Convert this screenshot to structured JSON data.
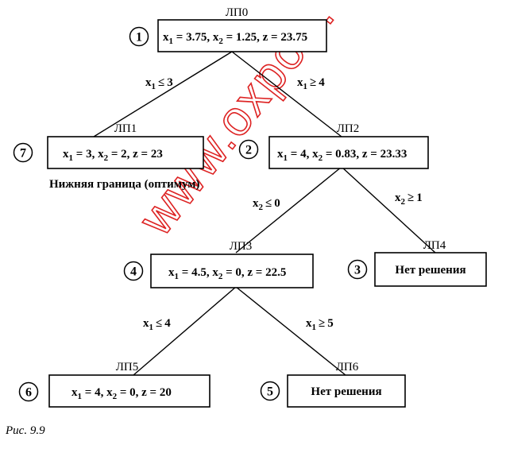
{
  "figure_caption": "Рис. 9.9",
  "watermark": "www.oxpo...",
  "nodes": [
    {
      "id": "n0",
      "title": "ЛП0",
      "order": "1",
      "box_parts": [
        [
          "x",
          ""
        ],
        [
          "1",
          ""
        ],
        [
          " = 3.75, ",
          ""
        ],
        [
          "x",
          ""
        ],
        [
          "2",
          ""
        ],
        [
          " = 1.25, z = 23.75",
          ""
        ]
      ]
    },
    {
      "id": "n1",
      "title": "ЛП1",
      "order": "7",
      "note": "Нижняя граница (оптимум)"
    },
    {
      "id": "n2",
      "title": "ЛП2",
      "order": "2"
    },
    {
      "id": "n3",
      "title": "ЛП3",
      "order": "4"
    },
    {
      "id": "n4",
      "title": "ЛП4",
      "order": "3",
      "text": "Нет решения"
    },
    {
      "id": "n5",
      "title": "ЛП5",
      "order": "6"
    },
    {
      "id": "n6",
      "title": "ЛП6",
      "order": "5",
      "text": "Нет решения"
    }
  ],
  "solutions": {
    "n0": {
      "x1": "3.75",
      "x2": "1.25",
      "z": "23.75"
    },
    "n1": {
      "x1": "3",
      "x2": "2",
      "z": "23"
    },
    "n2": {
      "x1": "4",
      "x2": "0.83",
      "z": "23.33"
    },
    "n3": {
      "x1": "4.5",
      "x2": "0",
      "z": "22.5"
    },
    "n5": {
      "x1": "4",
      "x2": "0",
      "z": "20"
    }
  },
  "edges": [
    {
      "from": "n0",
      "to": "n1",
      "var": "x",
      "sub": "1",
      "op": "≤",
      "val": "3"
    },
    {
      "from": "n0",
      "to": "n2",
      "var": "x",
      "sub": "1",
      "op": "≥",
      "val": "4"
    },
    {
      "from": "n2",
      "to": "n3",
      "var": "x",
      "sub": "2",
      "op": "≤",
      "val": "0"
    },
    {
      "from": "n2",
      "to": "n4",
      "var": "x",
      "sub": "2",
      "op": "≥",
      "val": "1"
    },
    {
      "from": "n3",
      "to": "n5",
      "var": "x",
      "sub": "1",
      "op": "≤",
      "val": "4"
    },
    {
      "from": "n3",
      "to": "n6",
      "var": "x",
      "sub": "1",
      "op": "≥",
      "val": "5"
    }
  ]
}
